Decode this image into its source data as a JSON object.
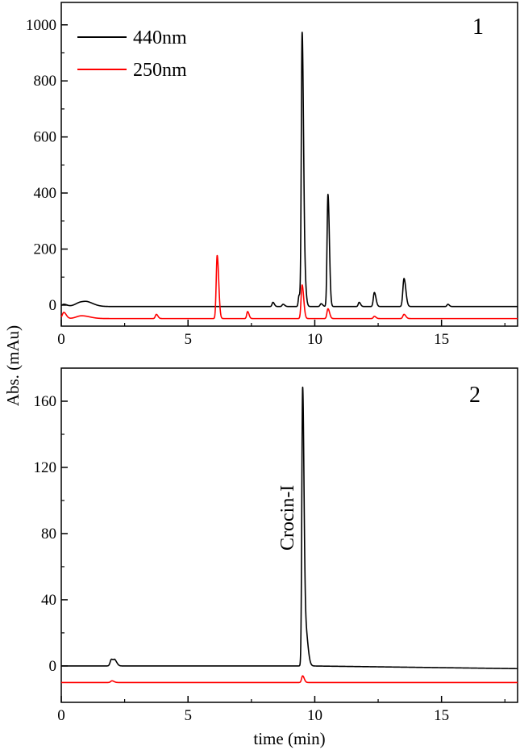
{
  "chart_data": [
    {
      "type": "line",
      "panel_label": "1",
      "xlim": [
        0,
        18
      ],
      "ylim": [
        -75,
        1080
      ],
      "x_ticks": [
        0,
        5,
        10,
        15
      ],
      "x_tick_labels": [
        "0",
        "5",
        "10",
        "15"
      ],
      "y_ticks": [
        0,
        200,
        400,
        600,
        800,
        1000
      ],
      "y_tick_labels": [
        "0",
        "200",
        "400",
        "600",
        "800",
        "1000"
      ],
      "legend_position": "top-left",
      "grid": false,
      "baselines": {
        "440nm": -5,
        "250nm": -48
      },
      "series": [
        {
          "name": "440nm",
          "color": "#000000",
          "peaks": [
            {
              "x": 0.1,
              "height": 8,
              "width": 0.08
            },
            {
              "x": 0.8,
              "height": 16,
              "width": 0.22
            },
            {
              "x": 1.05,
              "height": 5,
              "width": 0.15
            },
            {
              "x": 8.35,
              "height": 15,
              "width": 0.035
            },
            {
              "x": 8.75,
              "height": 8,
              "width": 0.04
            },
            {
              "x": 9.38,
              "height": 40,
              "width": 0.03
            },
            {
              "x": 9.5,
              "height": 960,
              "width": 0.032
            },
            {
              "x": 9.58,
              "height": 120,
              "width": 0.04
            },
            {
              "x": 10.25,
              "height": 10,
              "width": 0.04
            },
            {
              "x": 10.52,
              "height": 400,
              "width": 0.035
            },
            {
              "x": 11.75,
              "height": 15,
              "width": 0.035
            },
            {
              "x": 12.35,
              "height": 50,
              "width": 0.04
            },
            {
              "x": 13.52,
              "height": 100,
              "width": 0.045
            },
            {
              "x": 15.25,
              "height": 8,
              "width": 0.035
            }
          ]
        },
        {
          "name": "250nm",
          "color": "#ff0000",
          "peaks": [
            {
              "x": 0.1,
              "height": 22,
              "width": 0.06
            },
            {
              "x": 0.8,
              "height": 10,
              "width": 0.2
            },
            {
              "x": 3.75,
              "height": 15,
              "width": 0.04
            },
            {
              "x": 6.15,
              "height": 225,
              "width": 0.038
            },
            {
              "x": 7.35,
              "height": 25,
              "width": 0.035
            },
            {
              "x": 9.5,
              "height": 120,
              "width": 0.04
            },
            {
              "x": 10.52,
              "height": 35,
              "width": 0.04
            },
            {
              "x": 12.35,
              "height": 8,
              "width": 0.04
            },
            {
              "x": 13.52,
              "height": 15,
              "width": 0.045
            }
          ]
        }
      ]
    },
    {
      "type": "line",
      "panel_label": "2",
      "xlim": [
        0,
        18
      ],
      "ylim": [
        -22,
        180
      ],
      "x_ticks": [
        0,
        5,
        10,
        15
      ],
      "x_tick_labels": [
        "0",
        "5",
        "10",
        "15"
      ],
      "y_ticks": [
        0,
        40,
        80,
        120,
        160
      ],
      "y_tick_labels": [
        "0",
        "40",
        "80",
        "120",
        "160"
      ],
      "grid": false,
      "baselines": {
        "black": 0,
        "red": -10
      },
      "annotation": {
        "text": "Crocin-I",
        "x": 9.5
      },
      "series": [
        {
          "color": "#000000",
          "peaks": [
            {
              "x": 1.98,
              "height": 4,
              "width": 0.05
            },
            {
              "x": 2.12,
              "height": 3,
              "width": 0.05
            },
            {
              "x": 9.52,
              "height": 162,
              "width": 0.032
            },
            {
              "x": 9.62,
              "height": 25,
              "width": 0.06
            }
          ]
        },
        {
          "color": "#ff0000",
          "peaks": [
            {
              "x": 2.0,
              "height": 1,
              "width": 0.05
            },
            {
              "x": 9.52,
              "height": 4,
              "width": 0.04
            }
          ]
        }
      ]
    }
  ],
  "shared_axes": {
    "ylabel": "Abs. (mAu)",
    "xlabel": "time (min)"
  }
}
